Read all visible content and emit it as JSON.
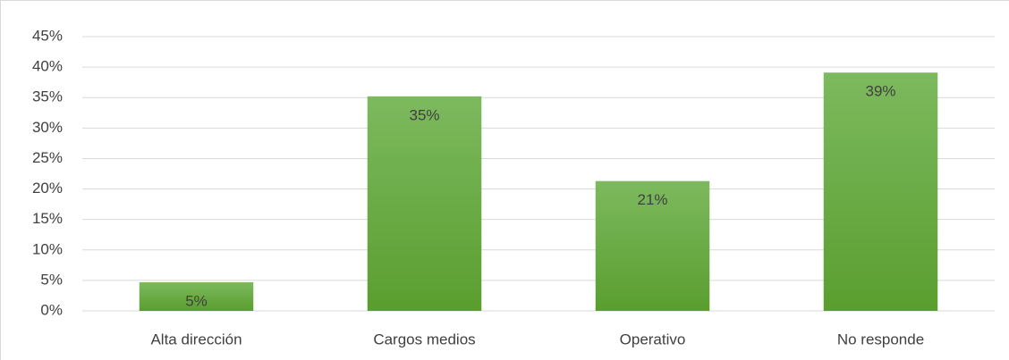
{
  "chart_data": {
    "type": "bar",
    "categories": [
      "Alta dirección",
      "Cargos medios",
      "Operativo",
      "No responde"
    ],
    "values": [
      4.7,
      35.2,
      21.3,
      39.1
    ],
    "value_labels": [
      "5%",
      "35%",
      "21%",
      "39%"
    ],
    "color": "#6aad45",
    "ylim": [
      0,
      45
    ],
    "yticks": [
      {
        "value": 0,
        "label": "0%"
      },
      {
        "value": 5,
        "label": "5%"
      },
      {
        "value": 10,
        "label": "10%"
      },
      {
        "value": 15,
        "label": "15%"
      },
      {
        "value": 20,
        "label": "20%"
      },
      {
        "value": 25,
        "label": "25%"
      },
      {
        "value": 30,
        "label": "30%"
      },
      {
        "value": 35,
        "label": "35%"
      },
      {
        "value": 40,
        "label": "40%"
      },
      {
        "value": 45,
        "label": "45%"
      }
    ],
    "grid": true
  }
}
